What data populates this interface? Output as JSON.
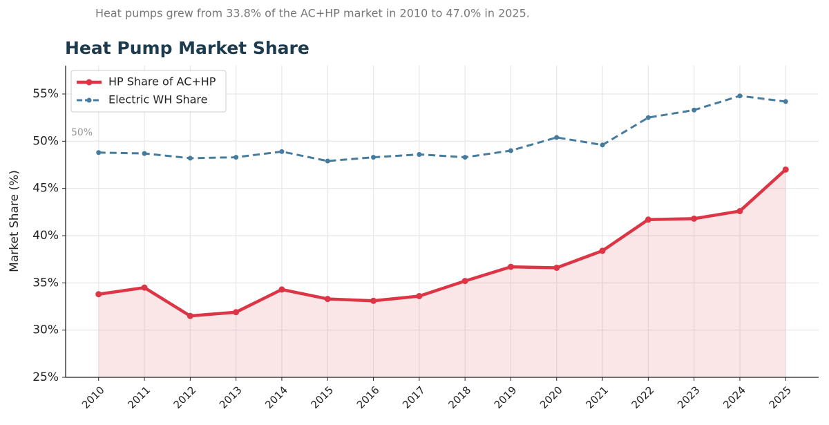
{
  "chart_data": {
    "type": "line",
    "subtitle": "Heat pumps grew from 33.8% of the AC+HP market in 2010 to 47.0% in 2025.",
    "title": "Heat Pump Market Share",
    "y_label": "Market Share (%)",
    "annotation": {
      "text": "50%",
      "x": 2009.4,
      "y": 50.9
    },
    "x": [
      2010,
      2011,
      2012,
      2013,
      2014,
      2015,
      2016,
      2017,
      2018,
      2019,
      2020,
      2021,
      2022,
      2023,
      2024,
      2025
    ],
    "xlim": [
      2009.28,
      2025.72
    ],
    "xticks": [
      2010,
      2011,
      2012,
      2013,
      2014,
      2015,
      2016,
      2017,
      2018,
      2019,
      2020,
      2021,
      2022,
      2023,
      2024,
      2025
    ],
    "ylim": [
      25,
      58
    ],
    "yticks": [
      {
        "value": 25,
        "label": "25%"
      },
      {
        "value": 30,
        "label": "30%"
      },
      {
        "value": 35,
        "label": "35%"
      },
      {
        "value": 40,
        "label": "40%"
      },
      {
        "value": 45,
        "label": "45%"
      },
      {
        "value": 50,
        "label": "50%"
      },
      {
        "value": 55,
        "label": "55%"
      }
    ],
    "grid": true,
    "legend": "upper left",
    "series": [
      {
        "name": "HP Share of AC+HP",
        "color": "#dc3545",
        "dashed": false,
        "fill": true,
        "values": [
          33.8,
          34.5,
          31.5,
          31.9,
          34.3,
          33.3,
          33.1,
          33.6,
          35.2,
          36.7,
          36.6,
          38.4,
          41.7,
          41.8,
          42.6,
          47.0
        ]
      },
      {
        "name": "Electric WH Share",
        "color": "#457b9d",
        "dashed": true,
        "fill": false,
        "values": [
          48.8,
          48.7,
          48.2,
          48.3,
          48.9,
          47.9,
          48.3,
          48.6,
          48.3,
          49.0,
          50.4,
          49.6,
          52.5,
          53.3,
          54.8,
          54.2
        ]
      }
    ]
  }
}
